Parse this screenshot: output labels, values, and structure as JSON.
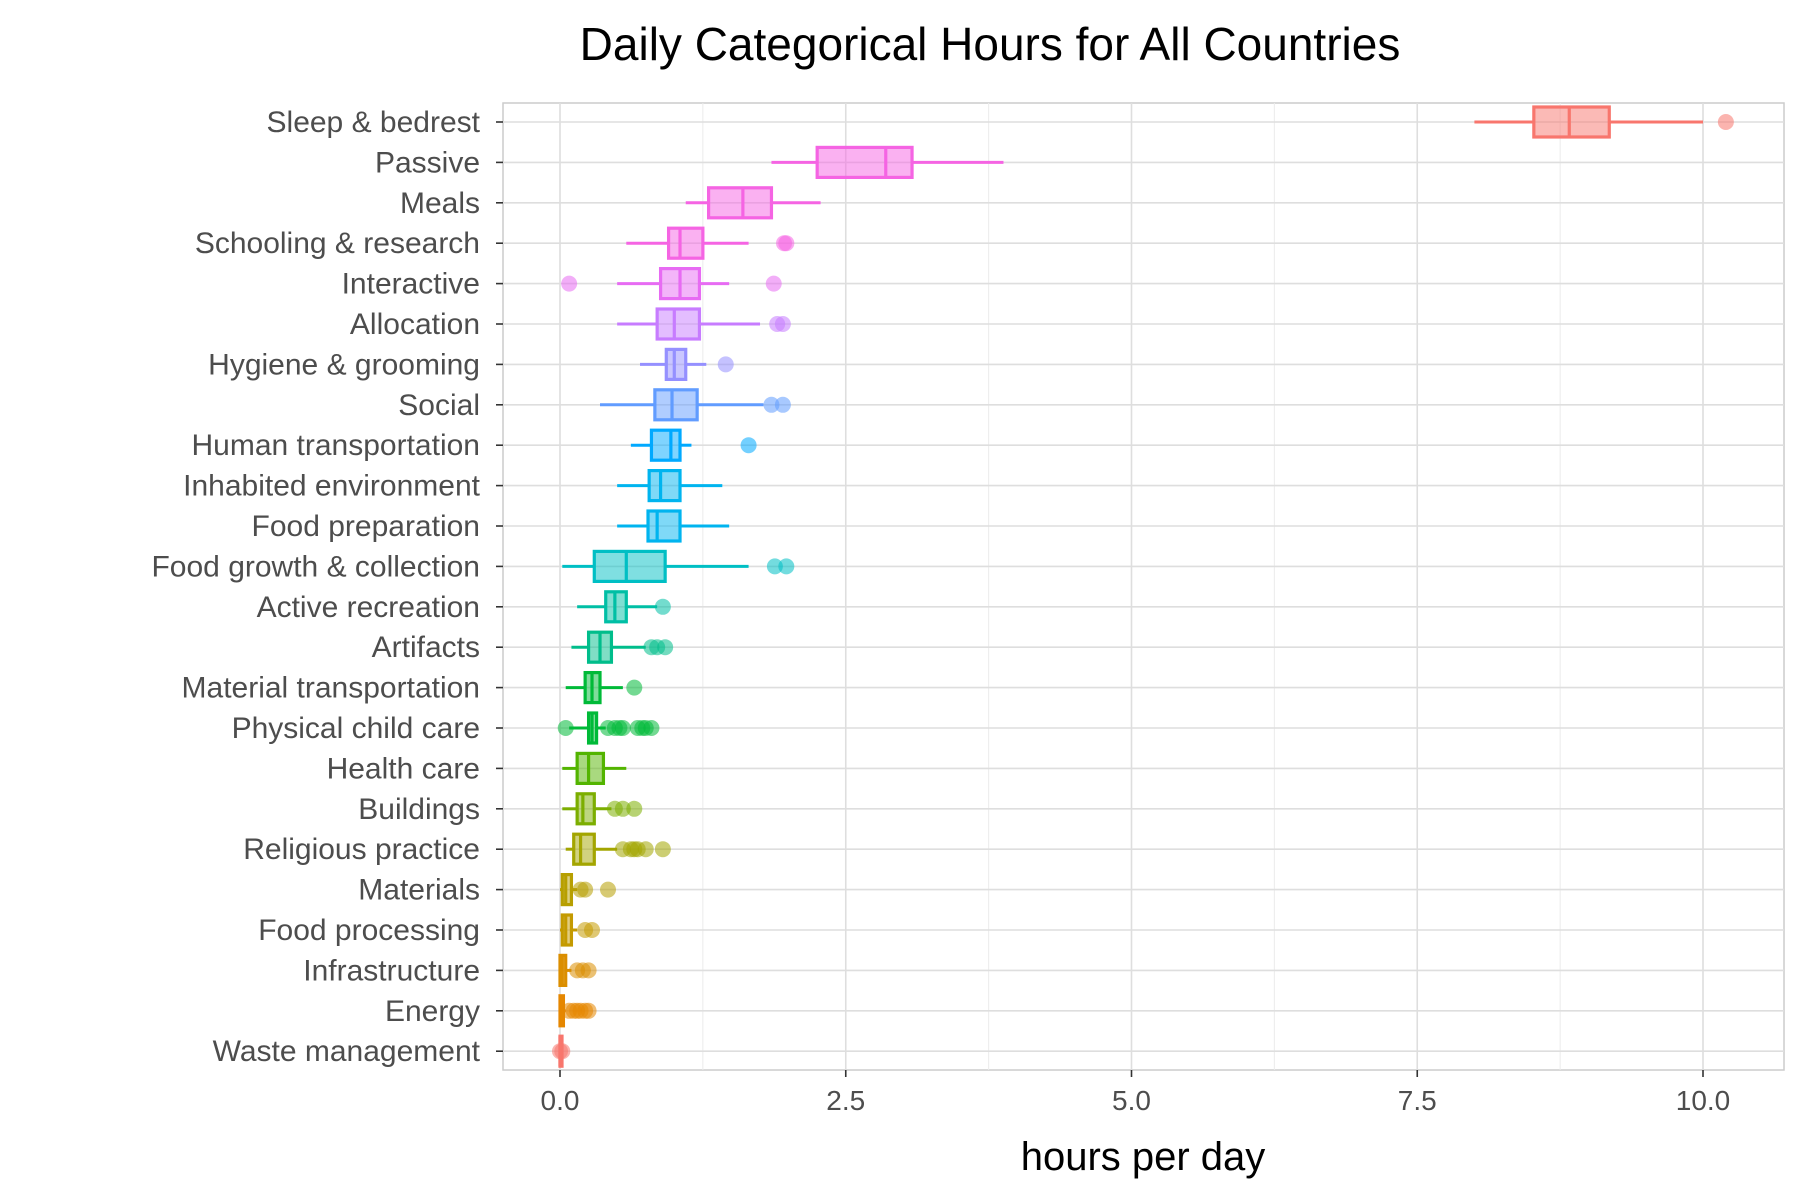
{
  "chart_data": {
    "type": "boxplot",
    "title": "Daily Categorical Hours for All Countries",
    "xlabel": "hours per day",
    "ylabel": "",
    "xlim": [
      -0.25,
      10.55
    ],
    "xticks": [
      0.0,
      2.5,
      5.0,
      7.5,
      10.0
    ],
    "xtick_labels": [
      "0.0",
      "2.5",
      "5.0",
      "7.5",
      "10.0"
    ],
    "grid": true,
    "legend": "none",
    "categories": [
      {
        "name": "Sleep & bedrest",
        "color": "#f8766d",
        "whisker_low": 8.0,
        "q1": 8.52,
        "median": 8.83,
        "q3": 9.18,
        "whisker_high": 10.0,
        "outliers": [
          10.2
        ]
      },
      {
        "name": "Passive",
        "color": "#f564e3",
        "whisker_low": 1.85,
        "q1": 2.25,
        "median": 2.85,
        "q3": 3.08,
        "whisker_high": 3.88,
        "outliers": []
      },
      {
        "name": "Meals",
        "color": "#f564e3",
        "whisker_low": 1.1,
        "q1": 1.3,
        "median": 1.6,
        "q3": 1.85,
        "whisker_high": 2.28,
        "outliers": []
      },
      {
        "name": "Schooling & research",
        "color": "#f564e3",
        "whisker_low": 0.58,
        "q1": 0.95,
        "median": 1.05,
        "q3": 1.25,
        "whisker_high": 1.65,
        "outliers": [
          1.96,
          1.98
        ]
      },
      {
        "name": "Interactive",
        "color": "#e76bf3",
        "whisker_low": 0.5,
        "q1": 0.88,
        "median": 1.05,
        "q3": 1.22,
        "whisker_high": 1.48,
        "outliers": [
          0.08,
          1.87
        ]
      },
      {
        "name": "Allocation",
        "color": "#c77cff",
        "whisker_low": 0.5,
        "q1": 0.85,
        "median": 1.0,
        "q3": 1.22,
        "whisker_high": 1.75,
        "outliers": [
          1.9,
          1.95
        ]
      },
      {
        "name": "Hygiene & grooming",
        "color": "#9590ff",
        "whisker_low": 0.7,
        "q1": 0.93,
        "median": 1.0,
        "q3": 1.1,
        "whisker_high": 1.28,
        "outliers": [
          1.45
        ]
      },
      {
        "name": "Social",
        "color": "#619cff",
        "whisker_low": 0.35,
        "q1": 0.83,
        "median": 0.98,
        "q3": 1.2,
        "whisker_high": 1.78,
        "outliers": [
          1.85,
          1.95
        ]
      },
      {
        "name": "Human transportation",
        "color": "#00a9ff",
        "whisker_low": 0.62,
        "q1": 0.8,
        "median": 0.97,
        "q3": 1.05,
        "whisker_high": 1.15,
        "outliers": [
          1.65
        ]
      },
      {
        "name": "Inhabited environment",
        "color": "#00b4ef",
        "whisker_low": 0.5,
        "q1": 0.78,
        "median": 0.88,
        "q3": 1.05,
        "whisker_high": 1.42,
        "outliers": []
      },
      {
        "name": "Food preparation",
        "color": "#00b4ef",
        "whisker_low": 0.5,
        "q1": 0.77,
        "median": 0.85,
        "q3": 1.05,
        "whisker_high": 1.48,
        "outliers": []
      },
      {
        "name": "Food growth & collection",
        "color": "#00bfc4",
        "whisker_low": 0.02,
        "q1": 0.3,
        "median": 0.58,
        "q3": 0.92,
        "whisker_high": 1.65,
        "outliers": [
          1.88,
          1.98
        ]
      },
      {
        "name": "Active recreation",
        "color": "#00bfa5",
        "whisker_low": 0.15,
        "q1": 0.4,
        "median": 0.48,
        "q3": 0.58,
        "whisker_high": 0.85,
        "outliers": [
          0.9
        ]
      },
      {
        "name": "Artifacts",
        "color": "#00bd8b",
        "whisker_low": 0.1,
        "q1": 0.25,
        "median": 0.35,
        "q3": 0.45,
        "whisker_high": 0.75,
        "outliers": [
          0.8,
          0.85,
          0.92
        ]
      },
      {
        "name": "Material transportation",
        "color": "#00ba38",
        "whisker_low": 0.05,
        "q1": 0.22,
        "median": 0.28,
        "q3": 0.35,
        "whisker_high": 0.55,
        "outliers": [
          0.65
        ]
      },
      {
        "name": "Physical child care",
        "color": "#00ba38",
        "whisker_low": 0.08,
        "q1": 0.25,
        "median": 0.28,
        "q3": 0.32,
        "whisker_high": 0.4,
        "outliers": [
          0.05,
          0.42,
          0.48,
          0.52,
          0.55,
          0.68,
          0.72,
          0.75,
          0.8
        ]
      },
      {
        "name": "Health care",
        "color": "#53b400",
        "whisker_low": 0.02,
        "q1": 0.15,
        "median": 0.25,
        "q3": 0.38,
        "whisker_high": 0.58,
        "outliers": []
      },
      {
        "name": "Buildings",
        "color": "#7cae00",
        "whisker_low": 0.02,
        "q1": 0.15,
        "median": 0.2,
        "q3": 0.3,
        "whisker_high": 0.45,
        "outliers": [
          0.48,
          0.55,
          0.65
        ]
      },
      {
        "name": "Religious practice",
        "color": "#a3a500",
        "whisker_low": 0.05,
        "q1": 0.12,
        "median": 0.18,
        "q3": 0.3,
        "whisker_high": 0.5,
        "outliers": [
          0.55,
          0.62,
          0.65,
          0.68,
          0.75,
          0.9
        ]
      },
      {
        "name": "Materials",
        "color": "#b79f00",
        "whisker_low": 0.0,
        "q1": 0.02,
        "median": 0.05,
        "q3": 0.1,
        "whisker_high": 0.15,
        "outliers": [
          0.18,
          0.22,
          0.42
        ]
      },
      {
        "name": "Food processing",
        "color": "#c49a00",
        "whisker_low": 0.0,
        "q1": 0.02,
        "median": 0.05,
        "q3": 0.1,
        "whisker_high": 0.15,
        "outliers": [
          0.22,
          0.28
        ]
      },
      {
        "name": "Infrastructure",
        "color": "#db8e00",
        "whisker_low": 0.0,
        "q1": 0.0,
        "median": 0.02,
        "q3": 0.05,
        "whisker_high": 0.1,
        "outliers": [
          0.15,
          0.2,
          0.25
        ]
      },
      {
        "name": "Energy",
        "color": "#e58700",
        "whisker_low": 0.0,
        "q1": 0.0,
        "median": 0.02,
        "q3": 0.03,
        "whisker_high": 0.05,
        "outliers": [
          0.08,
          0.12,
          0.15,
          0.18,
          0.22,
          0.25
        ]
      },
      {
        "name": "Waste management",
        "color": "#f8766d",
        "whisker_low": 0.0,
        "q1": 0.0,
        "median": 0.0,
        "q3": 0.0,
        "whisker_high": 0.0,
        "outliers": [
          0.0,
          0.02
        ]
      }
    ]
  }
}
